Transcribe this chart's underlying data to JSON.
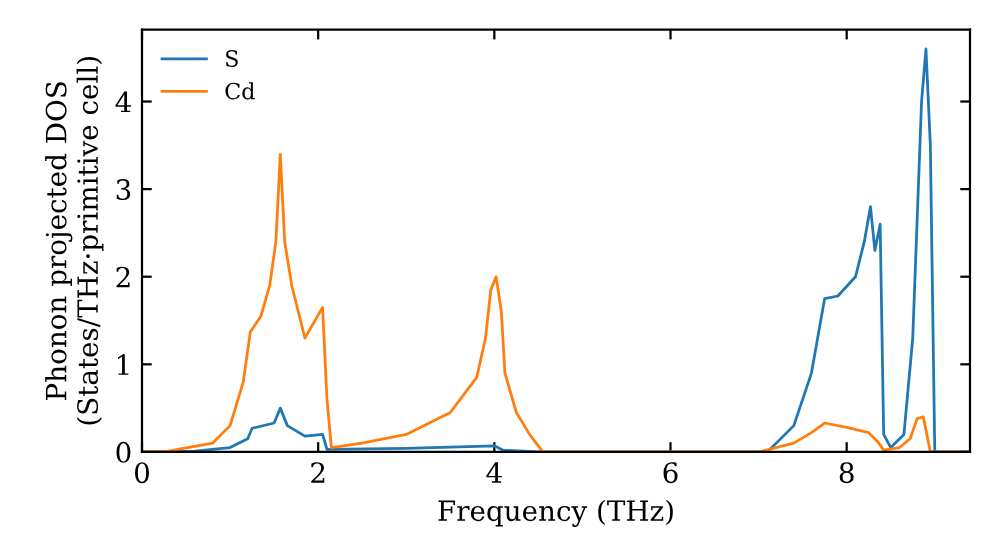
{
  "chart_data": {
    "type": "line",
    "xlabel": "Frequency (THz)",
    "ylabel": "Phonon projected DOS\n(States/THz·primitive cell)",
    "xlim": [
      0,
      9.4
    ],
    "ylim": [
      0,
      4.82
    ],
    "xticks": [
      0,
      2,
      4,
      6,
      8
    ],
    "yticks": [
      0,
      1,
      2,
      3,
      4
    ],
    "grid": false,
    "legend": "top left",
    "marker": "none",
    "line_style": "solid",
    "series": [
      {
        "name": "S",
        "color": "#1f77b4",
        "x": [
          0,
          0.6,
          1.0,
          1.2,
          1.25,
          1.5,
          1.57,
          1.65,
          1.85,
          2.05,
          2.1,
          3.0,
          4.0,
          4.1,
          4.5,
          7.1,
          7.4,
          7.6,
          7.75,
          7.9,
          8.1,
          8.2,
          8.27,
          8.32,
          8.38,
          8.42,
          8.5,
          8.65,
          8.75,
          8.85,
          8.9,
          8.95,
          9.0,
          9.4
        ],
        "values": [
          0,
          0.01,
          0.05,
          0.15,
          0.27,
          0.33,
          0.5,
          0.3,
          0.18,
          0.2,
          0.03,
          0.04,
          0.07,
          0.02,
          0,
          0,
          0.3,
          0.9,
          1.75,
          1.78,
          2.0,
          2.4,
          2.8,
          2.3,
          2.6,
          0.2,
          0.05,
          0.2,
          1.3,
          4.0,
          4.6,
          3.5,
          0,
          0
        ]
      },
      {
        "name": "Cd",
        "color": "#ff7f0e",
        "x": [
          0,
          0.3,
          0.8,
          1.0,
          1.15,
          1.23,
          1.35,
          1.45,
          1.52,
          1.57,
          1.62,
          1.7,
          1.85,
          2.05,
          2.1,
          2.15,
          2.5,
          3.0,
          3.5,
          3.8,
          3.9,
          3.96,
          4.02,
          4.08,
          4.12,
          4.25,
          4.4,
          4.55,
          7.0,
          7.4,
          7.6,
          7.75,
          8.0,
          8.25,
          8.35,
          8.42,
          8.6,
          8.72,
          8.8,
          8.87,
          8.95,
          9.4
        ],
        "values": [
          0,
          0.01,
          0.1,
          0.3,
          0.8,
          1.37,
          1.55,
          1.9,
          2.4,
          3.4,
          2.4,
          1.9,
          1.3,
          1.65,
          0.6,
          0.05,
          0.1,
          0.2,
          0.45,
          0.85,
          1.3,
          1.85,
          2.0,
          1.6,
          0.9,
          0.45,
          0.2,
          0,
          0,
          0.1,
          0.22,
          0.33,
          0.28,
          0.22,
          0.12,
          0.02,
          0.05,
          0.15,
          0.38,
          0.4,
          0,
          0
        ]
      }
    ]
  }
}
